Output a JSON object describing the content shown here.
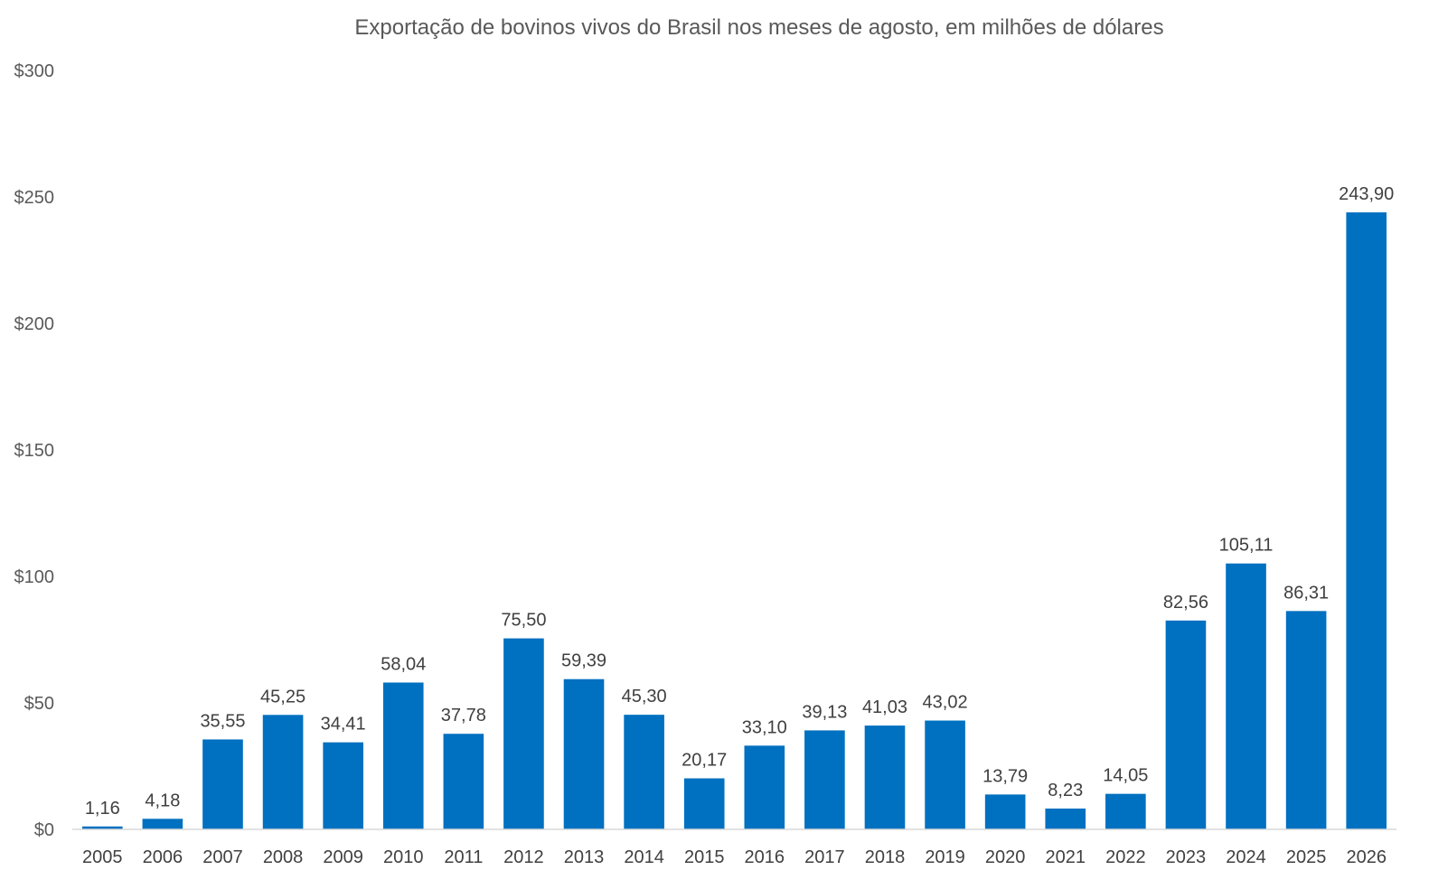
{
  "chart_data": {
    "type": "bar",
    "title": "Exportação de bovinos vivos do Brasil nos meses de agosto, em milhões de dólares",
    "xlabel": "",
    "ylabel": "",
    "ylim": [
      0,
      300
    ],
    "yticks": [
      "$0",
      "$50",
      "$100",
      "$150",
      "$200",
      "$250",
      "$300"
    ],
    "ytick_values": [
      0,
      50,
      100,
      150,
      200,
      250,
      300
    ],
    "grid": false,
    "legend": "none",
    "bar_color": "#0070c0",
    "categories": [
      "2005",
      "2006",
      "2007",
      "2008",
      "2009",
      "2010",
      "2011",
      "2012",
      "2013",
      "2014",
      "2015",
      "2016",
      "2017",
      "2018",
      "2019",
      "2020",
      "2021",
      "2022",
      "2023",
      "2024",
      "2025",
      "2026"
    ],
    "values": [
      1.16,
      4.18,
      35.55,
      45.25,
      34.41,
      58.04,
      37.78,
      75.5,
      59.39,
      45.3,
      20.17,
      33.1,
      39.13,
      41.03,
      43.02,
      13.79,
      8.23,
      14.05,
      82.56,
      105.11,
      86.31,
      243.9
    ],
    "data_labels": [
      "1,16",
      "4,18",
      "35,55",
      "45,25",
      "34,41",
      "58,04",
      "37,78",
      "75,50",
      "59,39",
      "45,30",
      "20,17",
      "33,10",
      "39,13",
      "41,03",
      "43,02",
      "13,79",
      "8,23",
      "14,05",
      "82,56",
      "105,11",
      "86,31",
      "243,90"
    ]
  }
}
